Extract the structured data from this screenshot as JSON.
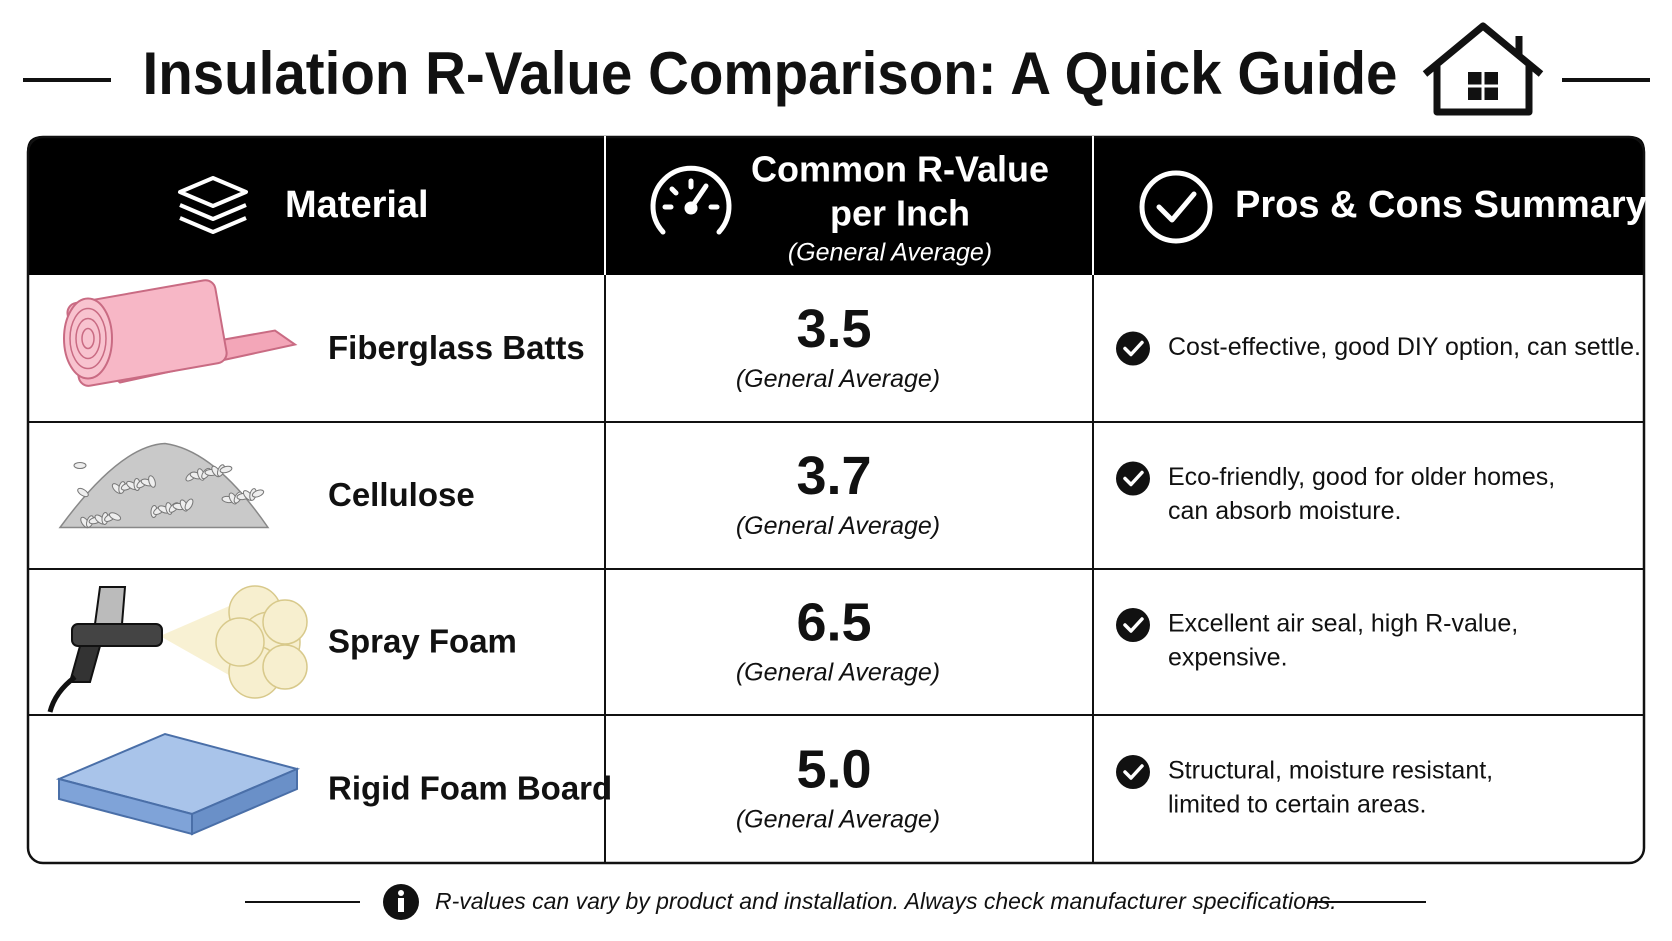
{
  "header": {
    "title": "Insulation R-Value Comparison: A Quick Guide"
  },
  "table": {
    "columns": [
      {
        "label": "Material"
      },
      {
        "label_lines": [
          "Common R-Value",
          "per Inch"
        ],
        "sublabel": "(General Average)"
      },
      {
        "label": "Pros & Cons Summary"
      }
    ],
    "rows": [
      {
        "material": "Fiberglass Batts",
        "value": "3.5",
        "note": "(General Average)",
        "pros": [
          "Cost-effective, good DIY option, can settle."
        ]
      },
      {
        "material": "Cellulose",
        "value": "3.7",
        "note": "(General Average)",
        "pros": [
          "Eco-friendly, good for older homes,",
          "can absorb moisture."
        ]
      },
      {
        "material": "Spray Foam",
        "value": "6.5",
        "note": "(General Average)",
        "pros": [
          "Excellent air seal, high R-value,",
          "expensive."
        ]
      },
      {
        "material": "Rigid Foam Board",
        "value": "5.0",
        "note": "(General Average)",
        "pros": [
          "Structural, moisture resistant,",
          "limited to certain areas."
        ]
      }
    ]
  },
  "footer": {
    "note": "R-values can vary by product and installation. Always check manufacturer specifications."
  }
}
